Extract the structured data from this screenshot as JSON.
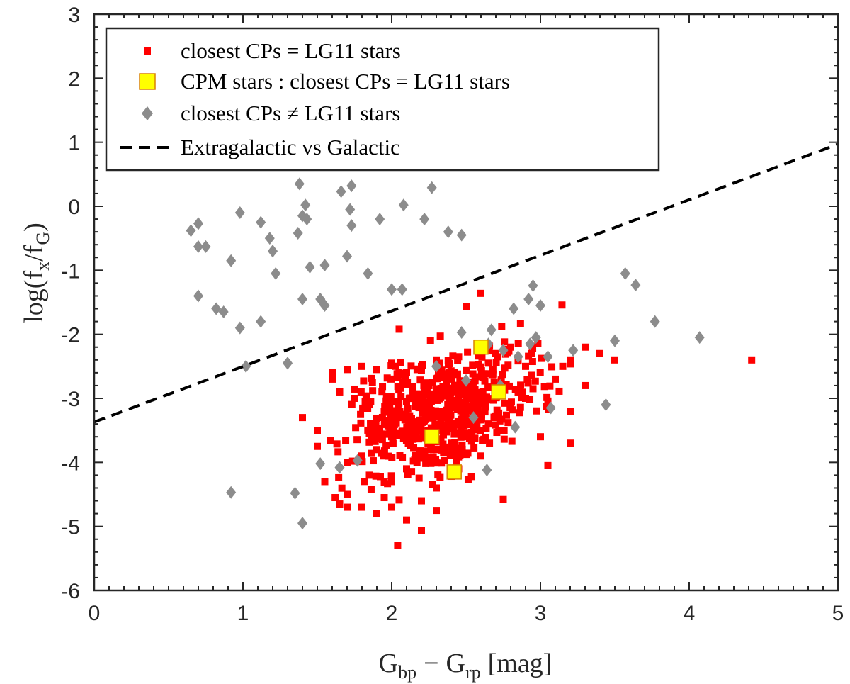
{
  "chart_data": {
    "type": "scatter",
    "xlabel": "G_bp − G_rp [mag]",
    "xlabel_parts": {
      "main": "G",
      "sub1": "bp",
      "minus": "−",
      "main2": "G",
      "sub2": "rp",
      "unit": "[mag]"
    },
    "ylabel": "log(f_x/f_G)",
    "ylabel_parts": {
      "pre": "log(f",
      "sub1": "x",
      "mid": "/f",
      "sub2": "G",
      "post": ")"
    },
    "xlim": [
      0,
      5
    ],
    "ylim": [
      -6,
      3
    ],
    "xticks": [
      0,
      1,
      2,
      3,
      4,
      5
    ],
    "yticks": [
      3,
      2,
      1,
      0,
      -1,
      -2,
      -3,
      -4,
      -5,
      -6
    ],
    "xtick_labels": [
      "0",
      "1",
      "2",
      "3",
      "4",
      "5"
    ],
    "ytick_labels": [
      "3",
      "2",
      "1",
      "0",
      "-1",
      "-2",
      "-3",
      "-4",
      "-5",
      "-6"
    ],
    "legend": {
      "placement": "top-left",
      "entries": [
        "closest CPs = LG11 stars",
        "CPM stars :  closest CPs = LG11 stars",
        "closest CPs ≠ LG11 stars",
        "Extragalactic vs Galactic"
      ]
    },
    "colors": {
      "red": "#ff0000",
      "yellow": "#ffff00",
      "yellow_edge": "#d98200",
      "gray": "#8c8c8c",
      "line": "#000000"
    },
    "series": [
      {
        "name": "closest CPs = LG11 stars",
        "marker": "square",
        "points_note": "dense cloud; representative points, plus programmatic scatter around these",
        "points": [
          [
            2.04,
            -5.3
          ],
          [
            2.2,
            -5.07
          ],
          [
            4.42,
            -2.4
          ],
          [
            2.6,
            -1.36
          ],
          [
            2.5,
            -1.57
          ],
          [
            2.05,
            -1.92
          ],
          [
            1.6,
            -2.6
          ],
          [
            3.3,
            -2.2
          ],
          [
            3.4,
            -2.3
          ],
          [
            3.5,
            -2.4
          ],
          [
            3.3,
            -2.8
          ],
          [
            3.2,
            -3.2
          ],
          [
            3.0,
            -3.6
          ],
          [
            3.2,
            -3.7
          ],
          [
            3.05,
            -4.05
          ],
          [
            2.75,
            -4.58
          ],
          [
            2.45,
            -4.1
          ],
          [
            2.3,
            -4.4
          ],
          [
            1.9,
            -4.8
          ],
          [
            1.8,
            -4.7
          ],
          [
            1.7,
            -4.5
          ],
          [
            1.55,
            -4.3
          ],
          [
            1.5,
            -3.75
          ],
          [
            1.4,
            -3.3
          ],
          [
            1.5,
            -3.5
          ],
          [
            2.2,
            -4.6
          ],
          [
            2.3,
            -4.75
          ],
          [
            2.1,
            -4.9
          ],
          [
            2.0,
            -4.7
          ],
          [
            1.95,
            -4.55
          ],
          [
            2.6,
            -3.9
          ],
          [
            2.65,
            -3.4
          ],
          [
            2.55,
            -3.2
          ],
          [
            2.8,
            -3.1
          ],
          [
            2.9,
            -3.0
          ],
          [
            2.95,
            -2.85
          ],
          [
            3.1,
            -2.7
          ],
          [
            3.15,
            -2.5
          ],
          [
            3.2,
            -2.4
          ],
          [
            2.9,
            -2.5
          ],
          [
            2.7,
            -2.3
          ],
          [
            2.8,
            -2.2
          ],
          [
            2.65,
            -2.45
          ],
          [
            2.45,
            -2.35
          ],
          [
            2.3,
            -2.4
          ],
          [
            2.2,
            -2.5
          ],
          [
            2.1,
            -2.6
          ],
          [
            2.0,
            -2.45
          ],
          [
            1.9,
            -2.55
          ],
          [
            1.8,
            -2.5
          ],
          [
            1.7,
            -2.55
          ],
          [
            1.6,
            -2.7
          ],
          [
            1.65,
            -2.9
          ],
          [
            1.75,
            -3.0
          ],
          [
            1.85,
            -3.1
          ],
          [
            1.95,
            -3.2
          ],
          [
            2.05,
            -3.3
          ],
          [
            2.15,
            -3.4
          ],
          [
            2.25,
            -3.5
          ],
          [
            2.35,
            -3.3
          ],
          [
            2.45,
            -3.0
          ],
          [
            2.5,
            -2.8
          ],
          [
            2.4,
            -2.7
          ],
          [
            2.3,
            -2.85
          ],
          [
            2.2,
            -2.95
          ],
          [
            2.1,
            -3.05
          ],
          [
            2.0,
            -3.6
          ],
          [
            1.9,
            -3.8
          ],
          [
            1.8,
            -3.9
          ],
          [
            1.7,
            -4.0
          ],
          [
            1.85,
            -4.2
          ],
          [
            2.0,
            -4.3
          ],
          [
            2.1,
            -4.1
          ],
          [
            2.2,
            -3.9
          ],
          [
            2.3,
            -3.8
          ],
          [
            2.4,
            -3.7
          ],
          [
            2.5,
            -3.6
          ],
          [
            2.6,
            -3.5
          ],
          [
            2.7,
            -3.3
          ],
          [
            2.85,
            -2.9
          ],
          [
            1.65,
            -4.65
          ],
          [
            1.62,
            -4.55
          ],
          [
            1.7,
            -4.7
          ]
        ]
      },
      {
        "name": "CPM stars :  closest CPs = LG11 stars",
        "marker": "square",
        "points": [
          [
            2.6,
            -2.2
          ],
          [
            2.72,
            -2.9
          ],
          [
            2.27,
            -3.6
          ],
          [
            2.42,
            -4.15
          ]
        ]
      },
      {
        "name": "closest CPs ≠ LG11 stars",
        "marker": "diamond",
        "points": [
          [
            0.65,
            -0.38
          ],
          [
            0.7,
            -0.27
          ],
          [
            0.7,
            -0.63
          ],
          [
            0.75,
            -0.63
          ],
          [
            0.7,
            -1.4
          ],
          [
            0.82,
            -1.6
          ],
          [
            0.87,
            -1.65
          ],
          [
            0.92,
            -0.85
          ],
          [
            0.98,
            -0.1
          ],
          [
            0.98,
            -1.9
          ],
          [
            1.02,
            -2.5
          ],
          [
            1.12,
            -0.25
          ],
          [
            1.12,
            -1.8
          ],
          [
            1.18,
            -0.5
          ],
          [
            1.2,
            -0.7
          ],
          [
            1.2,
            -0.7
          ],
          [
            1.22,
            -1.05
          ],
          [
            1.3,
            -2.45
          ],
          [
            1.35,
            -4.48
          ],
          [
            1.37,
            -0.42
          ],
          [
            1.38,
            0.35
          ],
          [
            1.4,
            -0.15
          ],
          [
            1.42,
            0.02
          ],
          [
            1.43,
            -0.2
          ],
          [
            1.45,
            -0.95
          ],
          [
            1.4,
            -1.45
          ],
          [
            1.52,
            -1.45
          ],
          [
            1.55,
            -1.55
          ],
          [
            1.55,
            -0.92
          ],
          [
            1.4,
            -4.95
          ],
          [
            1.52,
            -4.02
          ],
          [
            1.66,
            0.23
          ],
          [
            1.73,
            0.32
          ],
          [
            1.72,
            -0.05
          ],
          [
            1.73,
            -0.3
          ],
          [
            1.7,
            -0.78
          ],
          [
            1.84,
            -1.05
          ],
          [
            1.77,
            -3.97
          ],
          [
            1.65,
            -4.08
          ],
          [
            1.92,
            -0.2
          ],
          [
            2.0,
            -1.3
          ],
          [
            2.07,
            -1.3
          ],
          [
            2.08,
            0.02
          ],
          [
            2.22,
            -0.2
          ],
          [
            2.27,
            0.29
          ],
          [
            2.38,
            -0.4
          ],
          [
            2.47,
            -0.45
          ],
          [
            2.47,
            -1.97
          ],
          [
            2.5,
            -2.72
          ],
          [
            2.55,
            -3.3
          ],
          [
            2.65,
            -2.15
          ],
          [
            2.67,
            -1.93
          ],
          [
            2.73,
            -2.8
          ],
          [
            2.75,
            -2.25
          ],
          [
            2.82,
            -1.6
          ],
          [
            2.83,
            -3.45
          ],
          [
            2.92,
            -1.45
          ],
          [
            2.93,
            -2.15
          ],
          [
            2.97,
            -2.05
          ],
          [
            3.0,
            -1.55
          ],
          [
            2.95,
            -1.24
          ],
          [
            3.05,
            -2.35
          ],
          [
            3.07,
            -3.15
          ],
          [
            3.22,
            -2.25
          ],
          [
            3.44,
            -3.1
          ],
          [
            3.5,
            -2.1
          ],
          [
            3.57,
            -1.05
          ],
          [
            3.64,
            -1.23
          ],
          [
            3.77,
            -1.8
          ],
          [
            4.07,
            -2.05
          ],
          [
            0.92,
            -4.47
          ],
          [
            2.64,
            -4.12
          ],
          [
            1.3,
            -2.45
          ],
          [
            2.3,
            -2.5
          ],
          [
            2.85,
            -2.35
          ]
        ]
      }
    ],
    "line": {
      "name": "Extragalactic vs Galactic",
      "style": "dashed",
      "x": [
        0,
        5
      ],
      "y": [
        -3.37,
        0.97
      ]
    }
  }
}
